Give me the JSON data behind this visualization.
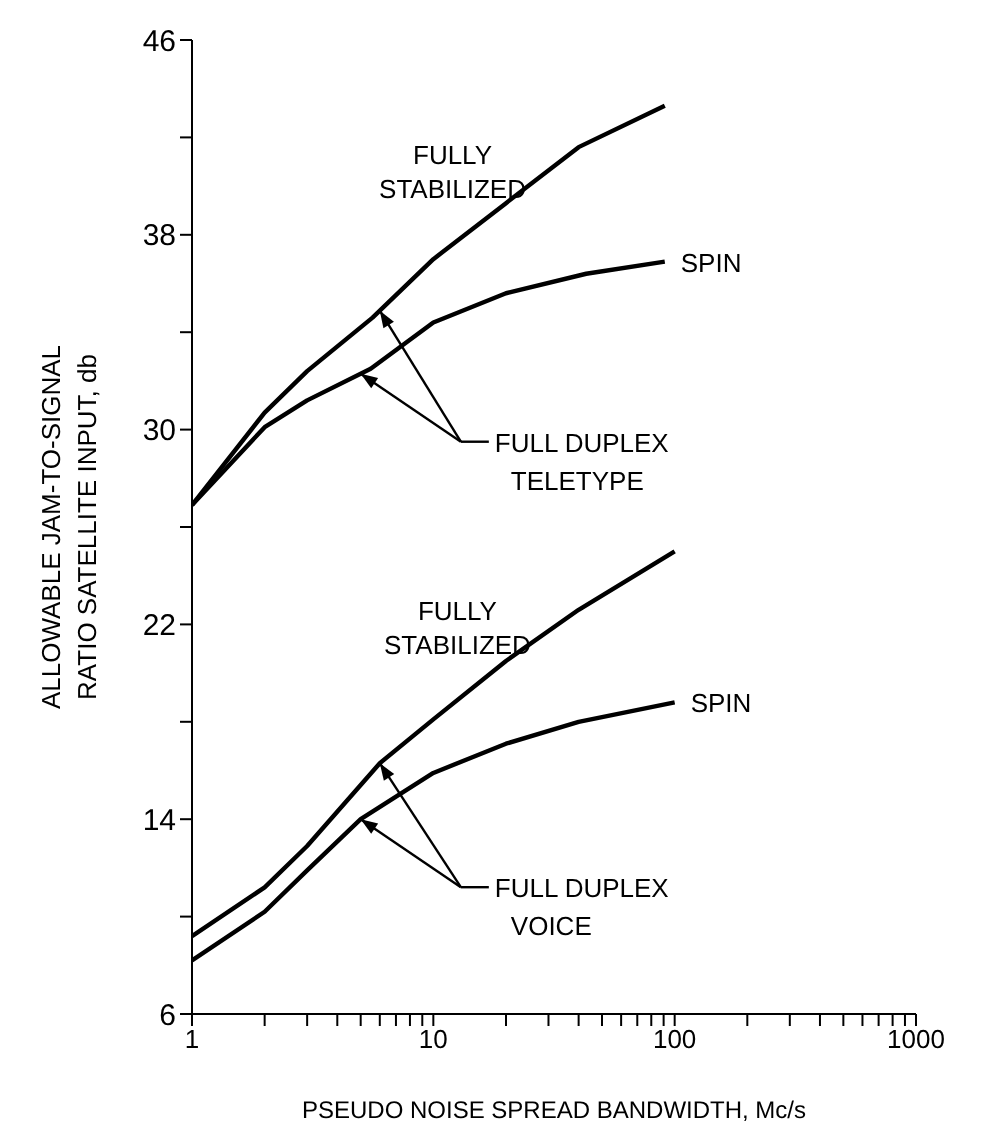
{
  "chart_data": {
    "type": "line",
    "xlabel": "PSEUDO NOISE SPREAD BANDWIDTH, Mc/s",
    "ylabel": "ALLOWABLE JAM-TO-SIGNAL RATIO SATELLITE INPUT, db",
    "log": "x",
    "xlim": [
      1,
      1000
    ],
    "xticks": [
      1,
      {
        "value": 2,
        "label": null
      },
      {
        "value": 3,
        "label": null
      },
      {
        "value": 4,
        "label": null
      },
      {
        "value": 5,
        "label": null
      },
      {
        "value": 6,
        "label": null
      },
      {
        "value": 7,
        "label": null
      },
      {
        "value": 8,
        "label": null
      },
      {
        "value": 9,
        "label": null
      },
      10,
      {
        "value": 20,
        "label": null
      },
      {
        "value": 30,
        "label": null
      },
      {
        "value": 40,
        "label": null
      },
      {
        "value": 50,
        "label": null
      },
      {
        "value": 60,
        "label": null
      },
      {
        "value": 70,
        "label": null
      },
      {
        "value": 80,
        "label": null
      },
      {
        "value": 90,
        "label": null
      },
      100,
      {
        "value": 200,
        "label": null
      },
      {
        "value": 300,
        "label": null
      },
      {
        "value": 400,
        "label": null
      },
      {
        "value": 500,
        "label": null
      },
      {
        "value": 600,
        "label": null
      },
      {
        "value": 700,
        "label": null
      },
      {
        "value": 800,
        "label": null
      },
      {
        "value": 900,
        "label": null
      },
      1000
    ],
    "ylim": [
      6,
      46
    ],
    "yticks": [
      6,
      {
        "value": 10,
        "label": null
      },
      14,
      {
        "value": 18,
        "label": null
      },
      22,
      {
        "value": 26,
        "label": null
      },
      30,
      {
        "value": 34,
        "label": null
      },
      38,
      {
        "value": 42,
        "label": null
      },
      46
    ],
    "marker": "none",
    "line_style": "solid",
    "series": [
      {
        "name": "FULLY STABILIZED",
        "color": "#000000",
        "x": [
          1,
          2,
          3,
          5.6,
          10,
          20,
          40,
          91
        ],
        "values": [
          26.9,
          30.7,
          32.4,
          34.6,
          37.0,
          39.3,
          41.6,
          43.3
        ]
      },
      {
        "name": "SPIN",
        "color": "#000000",
        "x": [
          1,
          2,
          3,
          5.5,
          10,
          20,
          43,
          91
        ],
        "values": [
          26.9,
          30.1,
          31.2,
          32.5,
          34.4,
          35.6,
          36.4,
          36.9
        ]
      },
      {
        "name": "FULLY STABILIZED",
        "color": "#000000",
        "x": [
          1,
          2,
          3,
          6,
          10,
          20,
          40,
          100
        ],
        "values": [
          9.2,
          11.2,
          12.9,
          16.3,
          18.1,
          20.5,
          22.6,
          25.0
        ]
      },
      {
        "name": "SPIN",
        "color": "#000000",
        "x": [
          1,
          2,
          3,
          5,
          10,
          20,
          40,
          100
        ],
        "values": [
          8.2,
          10.2,
          11.9,
          14.0,
          15.9,
          17.1,
          18.0,
          18.8
        ]
      }
    ],
    "annotations": [
      "FULL DUPLEX TELETYPE",
      "FULL DUPLEX VOICE"
    ]
  }
}
